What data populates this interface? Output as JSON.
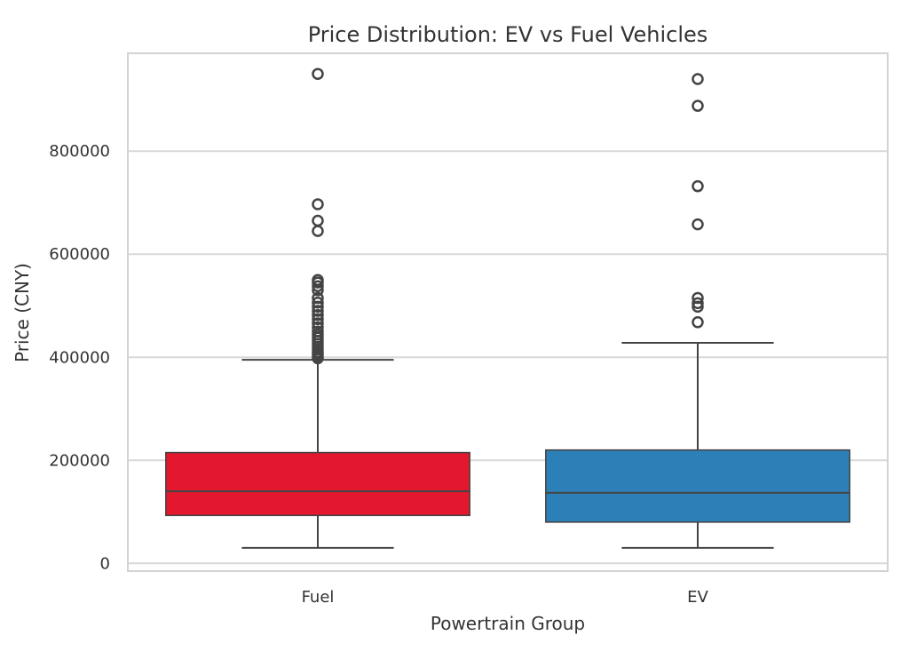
{
  "chart_data": {
    "type": "box",
    "title": "Price Distribution: EV vs Fuel Vehicles",
    "xlabel": "Powertrain Group",
    "ylabel": "Price (CNY)",
    "ylim": [
      -15000,
      990000
    ],
    "yticks": [
      0,
      200000,
      400000,
      600000,
      800000
    ],
    "ytick_labels": [
      "0",
      "200000",
      "400000",
      "600000",
      "800000"
    ],
    "grid": true,
    "categories": [
      "Fuel",
      "EV"
    ],
    "series": [
      {
        "category": "Fuel",
        "color": "#e3172e",
        "whisker_low": 30000,
        "q1": 93000,
        "median": 140000,
        "q3": 215000,
        "whisker_high": 395000,
        "outliers": [
          398000,
          402000,
          406000,
          410000,
          415000,
          420000,
          426000,
          432000,
          438000,
          444000,
          450000,
          458000,
          466000,
          474000,
          482000,
          490000,
          498000,
          506000,
          515000,
          530000,
          538000,
          545000,
          550000,
          645000,
          665000,
          697000,
          950000
        ]
      },
      {
        "category": "EV",
        "color": "#2d7fb8",
        "whisker_low": 30000,
        "q1": 80000,
        "median": 137000,
        "q3": 220000,
        "whisker_high": 428000,
        "outliers": [
          468000,
          498000,
          505000,
          515000,
          658000,
          732000,
          888000,
          940000
        ]
      }
    ]
  }
}
